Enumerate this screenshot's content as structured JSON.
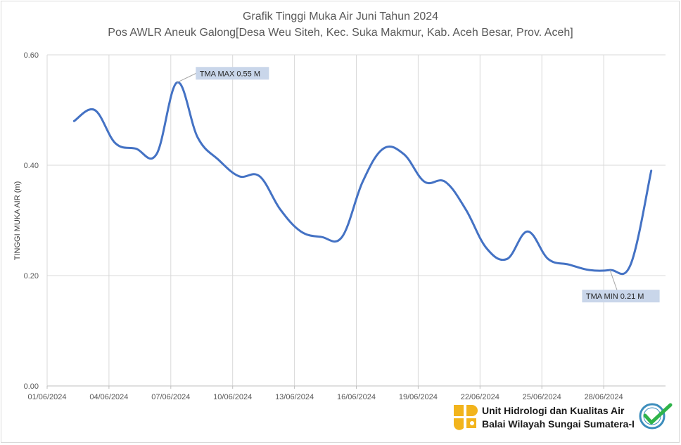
{
  "chart_data": {
    "type": "line",
    "title": "Grafik Tinggi Muka Air Juni Tahun 2024",
    "subtitle": "Pos AWLR Aneuk Galong[Desa Weu Siteh, Kec. Suka Makmur, Kab. Aceh Besar, Prov. Aceh]",
    "ylabel": "TINGGI MUKA AIR (m)",
    "xlabel": "",
    "ylim": [
      0,
      0.6
    ],
    "xlim": [
      "01/06/2024",
      "30/06/2024"
    ],
    "grid": true,
    "x_tick_labels": [
      "01/06/2024",
      "04/06/2024",
      "07/06/2024",
      "10/06/2024",
      "13/06/2024",
      "16/06/2024",
      "19/06/2024",
      "22/06/2024",
      "25/06/2024",
      "28/06/2024"
    ],
    "y_tick_labels": [
      "0.00",
      "0.20",
      "0.40",
      "0.60"
    ],
    "series": [
      {
        "color": "#4472c4",
        "x": [
          "02/06/2024",
          "03/06/2024",
          "04/06/2024",
          "05/06/2024",
          "06/06/2024",
          "07/06/2024",
          "08/06/2024",
          "09/06/2024",
          "10/06/2024",
          "11/06/2024",
          "12/06/2024",
          "13/06/2024",
          "14/06/2024",
          "15/06/2024",
          "16/06/2024",
          "17/06/2024",
          "18/06/2024",
          "19/06/2024",
          "20/06/2024",
          "21/06/2024",
          "22/06/2024",
          "23/06/2024",
          "24/06/2024",
          "25/06/2024",
          "26/06/2024",
          "27/06/2024",
          "28/06/2024",
          "29/06/2024",
          "30/06/2024"
        ],
        "values": [
          0.48,
          0.5,
          0.44,
          0.43,
          0.42,
          0.55,
          0.45,
          0.41,
          0.38,
          0.38,
          0.32,
          0.28,
          0.27,
          0.27,
          0.37,
          0.43,
          0.42,
          0.37,
          0.37,
          0.32,
          0.25,
          0.23,
          0.28,
          0.23,
          0.22,
          0.21,
          0.21,
          0.22,
          0.39
        ]
      }
    ],
    "annotations": [
      {
        "text": "TMA MAX  0.55 M",
        "x": "07/06/2024",
        "y": 0.55
      },
      {
        "text": "TMA MIN  0.21  M",
        "x": "28/06/2024",
        "y": 0.21
      }
    ]
  },
  "footer": {
    "line1": "Unit Hidrologi dan Kualitas Air",
    "line2": "Balai Wilayah Sungai Sumatera-I"
  },
  "logo_color": "#f2b41c",
  "badge_color": "#3c8dbc",
  "check_color": "#2fb34a"
}
